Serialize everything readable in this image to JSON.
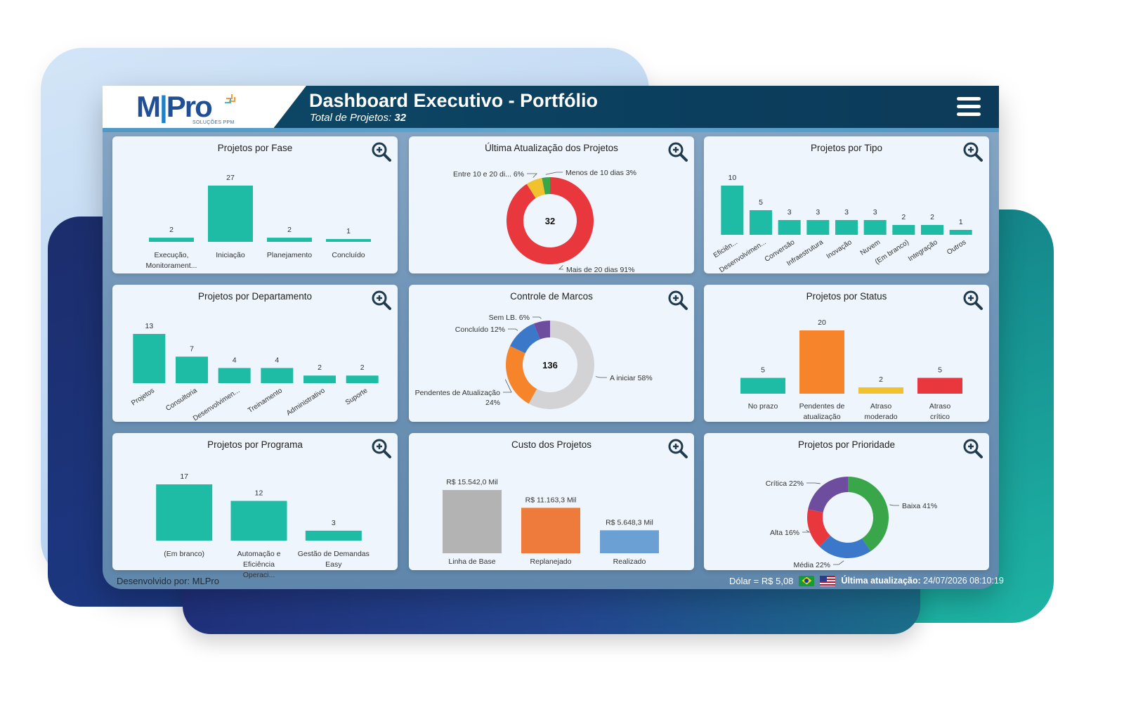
{
  "header": {
    "title": "Dashboard Executivo - Portfólio",
    "subtitle_label": "Total de Projetos:",
    "subtitle_value": "32",
    "logo_main": "MPro",
    "logo_sub": "SOLUÇÕES PPM"
  },
  "icons": {
    "menu": "hamburger-menu-icon",
    "zoom": "zoom-in-icon"
  },
  "colors": {
    "teal": "#1ebca5",
    "header": "#0e4a67",
    "red": "#e8383d",
    "yellow": "#f2c12e",
    "green": "#3aa64a",
    "orange": "#f5842a",
    "gray": "#b0b0b0",
    "blue": "#3b78c9",
    "purple": "#6e4c9e"
  },
  "footer": {
    "developed_by": "Desenvolvido por: MLPro",
    "dolar": "Dólar = R$ 5,08",
    "update_label": "Última atualização:",
    "update_value": "24/07/2026 08:10:19"
  },
  "cards": [
    {
      "title": "Projetos por Fase"
    },
    {
      "title": "Última Atualização dos Projetos"
    },
    {
      "title": "Projetos por Tipo"
    },
    {
      "title": "Projetos por Departamento"
    },
    {
      "title": "Controle de Marcos"
    },
    {
      "title": "Projetos por Status"
    },
    {
      "title": "Projetos por Programa"
    },
    {
      "title": "Custo dos Projetos"
    },
    {
      "title": "Projetos por Prioridade"
    }
  ],
  "chart_data": [
    {
      "id": "fase",
      "type": "bar",
      "title": "Projetos por Fase",
      "categories": [
        "Execução, Monitorament...",
        "Iniciação",
        "Planejamento",
        "Concluído"
      ],
      "values": [
        2,
        27,
        2,
        1
      ],
      "ylim": [
        0,
        27
      ]
    },
    {
      "id": "atualizacao",
      "type": "pie",
      "title": "Última Atualização dos Projetos",
      "center": "32",
      "labels": [
        "Mais de 20 dias 91%",
        "Entre 10 e 20 di... 6%",
        "Menos de 10 dias 3%"
      ],
      "values": [
        91,
        6,
        3
      ],
      "colors": [
        "#e8383d",
        "#f2c12e",
        "#3aa64a"
      ]
    },
    {
      "id": "tipo",
      "type": "bar",
      "title": "Projetos por Tipo",
      "categories": [
        "Eficiên...",
        "Desenvolvimen...",
        "Conversão",
        "Infraestrutura",
        "Inovação",
        "Nuvem",
        "(Em branco)",
        "Integração",
        "Outros"
      ],
      "values": [
        10,
        5,
        3,
        3,
        3,
        3,
        2,
        2,
        1
      ],
      "ylim": [
        0,
        10
      ]
    },
    {
      "id": "departamento",
      "type": "bar",
      "title": "Projetos por Departamento",
      "categories": [
        "Projetos",
        "Consultoria",
        "Desenvolvimen...",
        "Treinamento",
        "Administrativo",
        "Suporte"
      ],
      "values": [
        13,
        7,
        4,
        4,
        2,
        2
      ],
      "ylim": [
        0,
        13
      ]
    },
    {
      "id": "marcos",
      "type": "pie",
      "title": "Controle de Marcos",
      "center": "136",
      "labels": [
        "A iniciar 58%",
        "Pendentes de Atualização 24%",
        "Concluído 12%",
        "Sem LB. 6%"
      ],
      "values": [
        58,
        24,
        12,
        6
      ],
      "colors": [
        "#d3d3d6",
        "#f5842a",
        "#3b78c9",
        "#6e4c9e"
      ]
    },
    {
      "id": "status",
      "type": "bar",
      "title": "Projetos por Status",
      "categories": [
        "No prazo",
        "Pendentes de atualização",
        "Atraso moderado",
        "Atraso crítico"
      ],
      "values": [
        5,
        20,
        2,
        5
      ],
      "colors": [
        "#1ebca5",
        "#f5842a",
        "#f2c12e",
        "#e8383d"
      ],
      "ylim": [
        0,
        20
      ]
    },
    {
      "id": "programa",
      "type": "bar",
      "title": "Projetos por Programa",
      "categories": [
        "(Em branco)",
        "Automação e Eficiência Operaci...",
        "Gestão de Demandas Easy"
      ],
      "values": [
        17,
        12,
        3
      ],
      "ylim": [
        0,
        17
      ]
    },
    {
      "id": "custo",
      "type": "bar",
      "title": "Custo dos Projetos",
      "categories": [
        "Linha de Base",
        "Replanejado",
        "Realizado"
      ],
      "values": [
        15542.0,
        11163.3,
        5648.3
      ],
      "value_labels": [
        "R$ 15.542,0 Mil",
        "R$ 11.163,3 Mil",
        "R$ 5.648,3 Mil"
      ],
      "colors": [
        "#b3b3b3",
        "#ee7a3c",
        "#6aa0d4"
      ],
      "ylim": [
        0,
        15542
      ]
    },
    {
      "id": "prioridade",
      "type": "pie",
      "title": "Projetos por Prioridade",
      "labels": [
        "Baixa 41%",
        "Média 22%",
        "Alta 16%",
        "Crítica 22%"
      ],
      "values": [
        41,
        22,
        16,
        22
      ],
      "colors": [
        "#3aa64a",
        "#3b78c9",
        "#e8383d",
        "#6e4c9e"
      ]
    }
  ]
}
